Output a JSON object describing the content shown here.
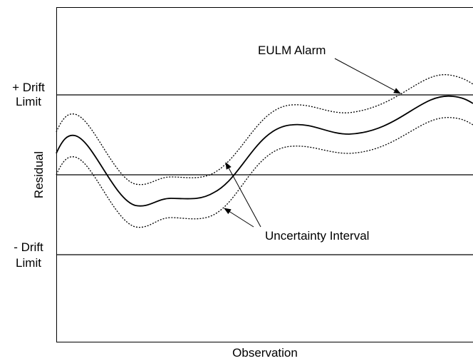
{
  "y_axis_label": "Residual",
  "x_axis_label": "Observation",
  "upper_limit": [
    "+ Drift",
    "Limit"
  ],
  "lower_limit": [
    "- Drift",
    "Limit"
  ],
  "annotations": [
    "EULM Alarm",
    "Uncertainty Interval"
  ]
}
